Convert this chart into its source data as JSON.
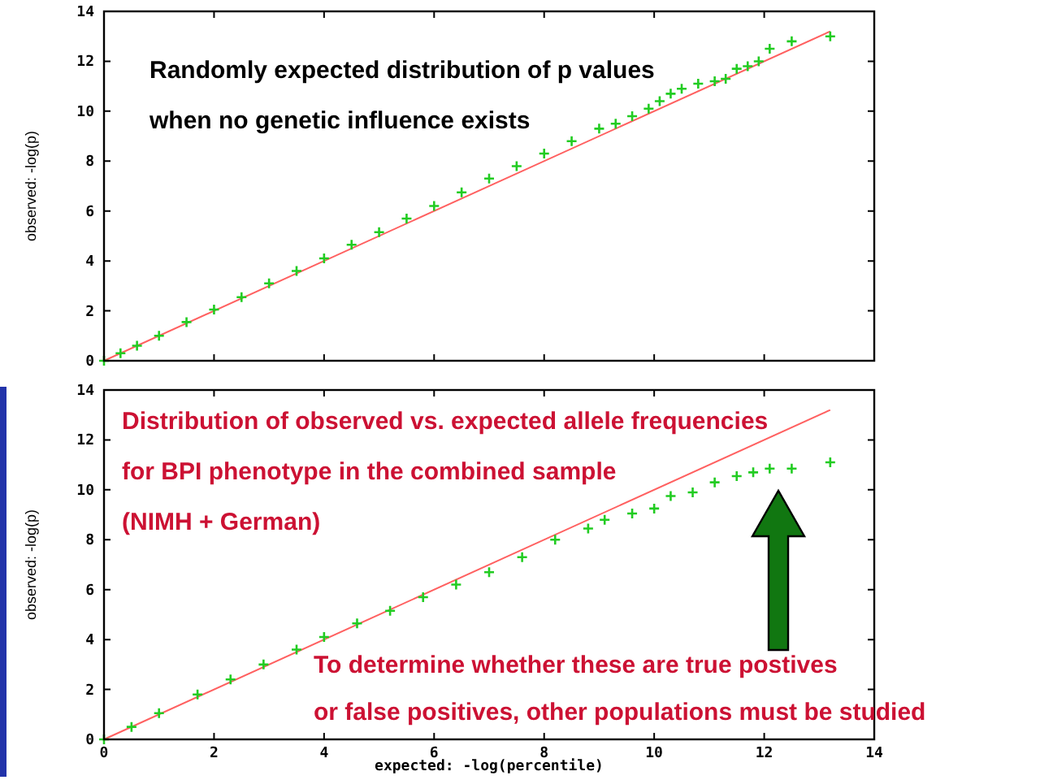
{
  "chart_data": [
    {
      "type": "scatter",
      "ylabel": "observed: -log(p)",
      "xlim": [
        0,
        14
      ],
      "ylim": [
        0,
        14
      ],
      "xticks": [
        0,
        2,
        4,
        6,
        8,
        10,
        12,
        14
      ],
      "yticks": [
        0,
        2,
        4,
        6,
        8,
        10,
        12,
        14
      ],
      "tick_labels": "y",
      "grid": false,
      "annotations": [
        "Randomly expected distribution of p values",
        "when no genetic influence exists"
      ],
      "series": [
        {
          "type": "line",
          "color": "#ff6060",
          "x": [
            0,
            13.2
          ],
          "values": [
            0,
            13.2
          ]
        },
        {
          "color": "#22cc22",
          "marker": "cross",
          "x": [
            0,
            0.3,
            0.6,
            1,
            1.5,
            2,
            2.5,
            3,
            3.5,
            4,
            4.5,
            5,
            5.5,
            6,
            6.5,
            7,
            7.5,
            8,
            8.5,
            9,
            9.3,
            9.6,
            9.9,
            10.1,
            10.3,
            10.5,
            10.8,
            11.1,
            11.3,
            11.5,
            11.7,
            11.9,
            12.1,
            12.5,
            13.2
          ],
          "values": [
            0,
            0.3,
            0.6,
            1,
            1.55,
            2.05,
            2.55,
            3.1,
            3.6,
            4.1,
            4.65,
            5.15,
            5.7,
            6.2,
            6.75,
            7.3,
            7.8,
            8.3,
            8.8,
            9.3,
            9.5,
            9.8,
            10.1,
            10.4,
            10.7,
            10.9,
            11.1,
            11.2,
            11.3,
            11.7,
            11.8,
            12,
            12.5,
            12.8,
            13
          ]
        }
      ]
    },
    {
      "type": "scatter",
      "xlabel": "expected: -log(percentile)",
      "ylabel": "observed: -log(p)",
      "xlim": [
        0,
        14
      ],
      "ylim": [
        0,
        14
      ],
      "xticks": [
        0,
        2,
        4,
        6,
        8,
        10,
        12,
        14
      ],
      "yticks": [
        0,
        2,
        4,
        6,
        8,
        10,
        12,
        14
      ],
      "grid": false,
      "annotations": [
        "Distribution of observed vs. expected allele frequencies",
        "for BPI phenotype in the combined sample",
        "(NIMH + German)",
        "To determine whether these are true postives",
        "or false positives, other populations must be studied"
      ],
      "series": [
        {
          "type": "line",
          "color": "#ff6060",
          "x": [
            0,
            13.2
          ],
          "values": [
            0,
            13.2
          ]
        },
        {
          "color": "#22cc22",
          "marker": "cross",
          "x": [
            0,
            0.5,
            1,
            1.7,
            2.3,
            2.9,
            3.5,
            4,
            4.6,
            5.2,
            5.8,
            6.4,
            7,
            7.6,
            8.2,
            8.8,
            9.1,
            9.6,
            10,
            10.3,
            10.7,
            11.1,
            11.5,
            11.8,
            12.1,
            12.5,
            13.2
          ],
          "values": [
            0,
            0.5,
            1.05,
            1.8,
            2.4,
            3,
            3.6,
            4.1,
            4.65,
            5.15,
            5.7,
            6.2,
            6.7,
            7.3,
            8,
            8.45,
            8.8,
            9.05,
            9.25,
            9.75,
            9.9,
            10.3,
            10.55,
            10.7,
            10.85,
            10.85,
            11.1
          ]
        }
      ]
    }
  ]
}
